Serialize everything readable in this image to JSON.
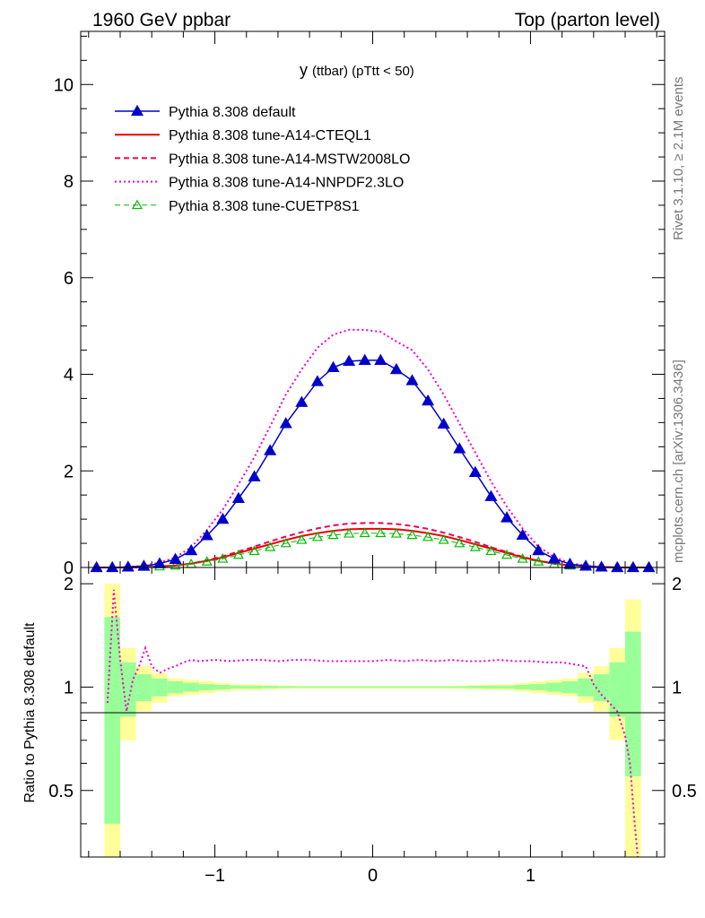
{
  "header": {
    "left": "1960 GeV ppbar",
    "right": "Top (parton level)"
  },
  "side_labels": {
    "rivet": "Rivet 3.1.10, ≥ 2.1M events",
    "mcplots": "mcplots.cern.ch [arXiv:1306.3436]"
  },
  "chart_data": [
    {
      "type": "line",
      "title_main": "y",
      "title_sub": "(ttbar)  (pTtt < 50)",
      "xlim": [
        -1.85,
        1.85
      ],
      "ylim": [
        0,
        11.1
      ],
      "yticks": [
        0,
        2,
        4,
        6,
        8,
        10
      ],
      "yticklabels": [
        "0",
        "2",
        "4",
        "6",
        "8",
        "10"
      ],
      "legend_position": "top-left",
      "x": [
        -1.75,
        -1.65,
        -1.55,
        -1.45,
        -1.35,
        -1.25,
        -1.15,
        -1.05,
        -0.95,
        -0.85,
        -0.75,
        -0.65,
        -0.55,
        -0.45,
        -0.35,
        -0.25,
        -0.15,
        -0.05,
        0.05,
        0.15,
        0.25,
        0.35,
        0.45,
        0.55,
        0.65,
        0.75,
        0.85,
        0.95,
        1.05,
        1.15,
        1.25,
        1.35,
        1.45,
        1.55,
        1.65,
        1.75
      ],
      "series": [
        {
          "name": "Pythia 8.308 default",
          "color": "#0000cc",
          "style": "solid-triangle",
          "values": [
            0.0,
            0.0,
            0.01,
            0.03,
            0.08,
            0.17,
            0.35,
            0.66,
            1.0,
            1.43,
            1.88,
            2.42,
            2.98,
            3.42,
            3.85,
            4.14,
            4.27,
            4.29,
            4.29,
            4.1,
            3.87,
            3.45,
            2.97,
            2.46,
            1.97,
            1.47,
            1.03,
            0.67,
            0.35,
            0.18,
            0.07,
            0.03,
            0.01,
            0.0,
            0.0,
            0.0
          ]
        },
        {
          "name": "Pythia 8.308 tune-A14-CTEQL1",
          "color": "#ee0000",
          "style": "solid",
          "values": [
            0.0,
            0.0,
            0.0,
            0.01,
            0.02,
            0.04,
            0.08,
            0.14,
            0.21,
            0.3,
            0.39,
            0.48,
            0.57,
            0.65,
            0.71,
            0.76,
            0.79,
            0.8,
            0.8,
            0.79,
            0.76,
            0.71,
            0.65,
            0.57,
            0.48,
            0.39,
            0.3,
            0.21,
            0.14,
            0.08,
            0.04,
            0.02,
            0.01,
            0.0,
            0.0,
            0.0
          ]
        },
        {
          "name": "Pythia 8.308 tune-A14-MSTW2008LO",
          "color": "#ee0055",
          "style": "dashed",
          "values": [
            0.0,
            0.0,
            0.0,
            0.01,
            0.02,
            0.04,
            0.08,
            0.15,
            0.23,
            0.33,
            0.43,
            0.54,
            0.64,
            0.73,
            0.81,
            0.87,
            0.91,
            0.92,
            0.92,
            0.9,
            0.86,
            0.8,
            0.72,
            0.63,
            0.53,
            0.42,
            0.32,
            0.22,
            0.14,
            0.08,
            0.04,
            0.02,
            0.01,
            0.0,
            0.0,
            0.0
          ]
        },
        {
          "name": "Pythia 8.308 tune-A14-NNPDF2.3LO",
          "color": "#ee00cc",
          "style": "dotted",
          "values": [
            0.0,
            0.0,
            0.01,
            0.04,
            0.1,
            0.21,
            0.42,
            0.78,
            1.2,
            1.72,
            2.28,
            2.92,
            3.58,
            4.1,
            4.55,
            4.82,
            4.92,
            4.92,
            4.88,
            4.68,
            4.5,
            4.1,
            3.58,
            2.98,
            2.38,
            1.78,
            1.26,
            0.81,
            0.43,
            0.22,
            0.09,
            0.04,
            0.01,
            0.0,
            0.0,
            0.0
          ]
        },
        {
          "name": "Pythia 8.308 tune-CUETP8S1",
          "color": "#00bb00",
          "style": "dashed-open-triangle",
          "values": [
            0.0,
            0.0,
            0.0,
            0.01,
            0.02,
            0.04,
            0.07,
            0.12,
            0.18,
            0.26,
            0.34,
            0.42,
            0.5,
            0.57,
            0.63,
            0.67,
            0.7,
            0.71,
            0.71,
            0.7,
            0.67,
            0.63,
            0.57,
            0.5,
            0.42,
            0.34,
            0.26,
            0.18,
            0.12,
            0.07,
            0.04,
            0.02,
            0.01,
            0.0,
            0.0,
            0.0
          ]
        }
      ]
    },
    {
      "type": "line",
      "ylabel": "Ratio to Pythia 8.308 default",
      "xlim": [
        -1.85,
        1.85
      ],
      "ylim": [
        0.32,
        2.23
      ],
      "xticks": [
        -1,
        0,
        1
      ],
      "xticklabels": [
        "−1",
        "0",
        "1"
      ],
      "yticks": [
        0.5,
        1,
        2
      ],
      "yticklabels": [
        "0.5",
        "1",
        "2"
      ],
      "band_x": [
        -1.75,
        -1.65,
        -1.55,
        -1.45,
        -1.35,
        -1.25,
        -1.15,
        -1.05,
        -0.95,
        -0.85,
        -0.75,
        -0.65,
        -0.55,
        -0.45,
        -0.35,
        -0.25,
        -0.15,
        -0.05,
        0.05,
        0.15,
        0.25,
        0.35,
        0.45,
        0.55,
        0.65,
        0.75,
        0.85,
        0.95,
        1.05,
        1.15,
        1.25,
        1.35,
        1.45,
        1.55,
        1.65,
        1.75
      ],
      "band_yellow": [
        0,
        1.0,
        0.3,
        0.15,
        0.1,
        0.06,
        0.05,
        0.04,
        0.03,
        0.02,
        0.02,
        0.015,
        0.012,
        0.01,
        0.01,
        0.01,
        0.01,
        0.01,
        0.01,
        0.01,
        0.01,
        0.01,
        0.01,
        0.012,
        0.015,
        0.02,
        0.02,
        0.03,
        0.04,
        0.05,
        0.06,
        0.1,
        0.15,
        0.3,
        0.8,
        0
      ],
      "band_green": [
        0,
        0.6,
        0.18,
        0.09,
        0.06,
        0.04,
        0.03,
        0.02,
        0.015,
        0.01,
        0.01,
        0.008,
        0.006,
        0.005,
        0.005,
        0.005,
        0.005,
        0.005,
        0.005,
        0.005,
        0.005,
        0.005,
        0.005,
        0.006,
        0.008,
        0.01,
        0.01,
        0.015,
        0.02,
        0.03,
        0.04,
        0.06,
        0.09,
        0.18,
        0.45,
        0
      ],
      "series": [
        {
          "name": "Pythia 8.308 tune-A14-NNPDF2.3LO",
          "color": "#ee00cc",
          "x": [
            -1.68,
            -1.64,
            -1.6,
            -1.56,
            -1.52,
            -1.48,
            -1.44,
            -1.4,
            -1.35,
            -1.3,
            -1.25,
            -1.2,
            -1.15,
            -1.1,
            -1.0,
            -0.9,
            -0.8,
            -0.7,
            -0.6,
            -0.5,
            -0.4,
            -0.3,
            -0.2,
            -0.1,
            0.0,
            0.1,
            0.2,
            0.3,
            0.4,
            0.5,
            0.6,
            0.7,
            0.8,
            0.9,
            1.0,
            1.1,
            1.2,
            1.25,
            1.3,
            1.35,
            1.4,
            1.45,
            1.5,
            1.55,
            1.6,
            1.63,
            1.66,
            1.68
          ],
          "values": [
            0.9,
            1.92,
            1.2,
            0.85,
            1.05,
            1.15,
            1.3,
            1.15,
            1.1,
            1.13,
            1.15,
            1.18,
            1.2,
            1.19,
            1.2,
            1.19,
            1.2,
            1.2,
            1.19,
            1.2,
            1.2,
            1.19,
            1.19,
            1.19,
            1.19,
            1.2,
            1.19,
            1.2,
            1.19,
            1.2,
            1.19,
            1.19,
            1.2,
            1.19,
            1.19,
            1.18,
            1.18,
            1.17,
            1.16,
            1.15,
            1.02,
            0.95,
            0.9,
            0.85,
            0.72,
            0.6,
            0.4,
            0.3
          ]
        }
      ]
    }
  ]
}
